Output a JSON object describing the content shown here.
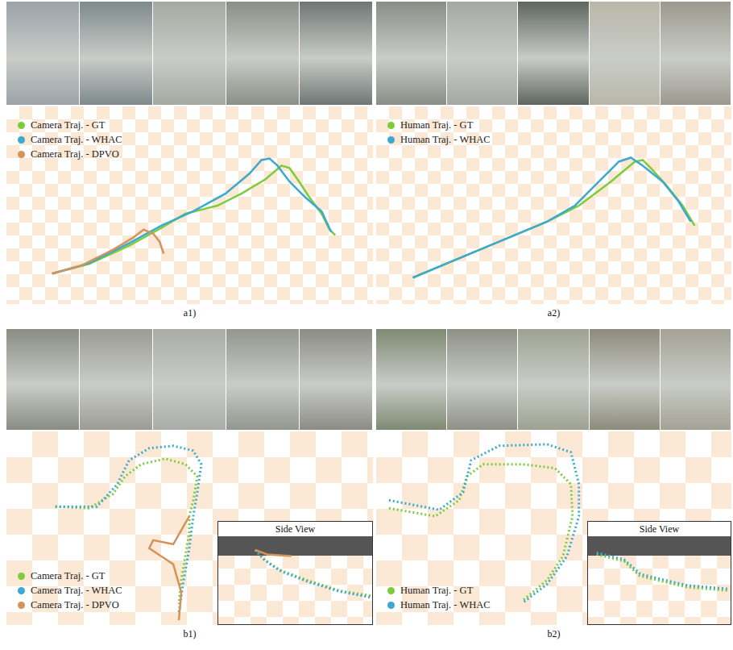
{
  "chart_data": [
    {
      "type": "line",
      "title": "a1)",
      "xlim": [
        0,
        455
      ],
      "ylim": [
        0,
        245
      ],
      "tick_labels": false,
      "legend": "upper left",
      "series": [
        {
          "name": "Camera Traj. - GT",
          "color": "#7dcc3a",
          "line_style": "solid",
          "x": [
            56,
            102,
            152,
            192,
            222,
            262,
            292,
            322,
            342,
            352,
            364,
            377,
            392,
            402,
            409
          ],
          "values": [
            37,
            49,
            72,
            94,
            112,
            122,
            137,
            155,
            172,
            169,
            152,
            132,
            112,
            92,
            85
          ]
        },
        {
          "name": "Camera Traj. - WHAC",
          "color": "#3ba9d0",
          "line_style": "solid",
          "x": [
            56,
            102,
            152,
            192,
            232,
            272,
            302,
            317,
            327,
            337,
            352,
            372,
            392,
            404
          ],
          "values": [
            37,
            50,
            75,
            97,
            115,
            137,
            162,
            179,
            181,
            172,
            152,
            132,
            115,
            89
          ]
        },
        {
          "name": "Camera Traj. - DPVO",
          "color": "#d4935a",
          "line_style": "solid",
          "x": [
            56,
            92,
            132,
            157,
            170,
            182,
            190,
            195
          ],
          "values": [
            37,
            47,
            67,
            82,
            92,
            87,
            77,
            62
          ]
        }
      ]
    },
    {
      "type": "line",
      "title": "a2)",
      "xlim": [
        0,
        443
      ],
      "ylim": [
        0,
        245
      ],
      "tick_labels": false,
      "legend": "upper left",
      "series": [
        {
          "name": "Human Traj. - GT",
          "color": "#7dcc3a",
          "line_style": "solid",
          "x": [
            45,
            93,
            153,
            213,
            253,
            293,
            323,
            333,
            345,
            363,
            383,
            398
          ],
          "values": [
            32,
            52,
            77,
            102,
            122,
            152,
            177,
            179,
            167,
            147,
            122,
            97
          ]
        },
        {
          "name": "Human Traj. - WHAC",
          "color": "#3ba9d0",
          "line_style": "solid",
          "x": [
            45,
            93,
            153,
            213,
            248,
            278,
            303,
            318,
            333,
            358,
            378,
            393
          ],
          "values": [
            32,
            52,
            77,
            102,
            122,
            152,
            177,
            182,
            172,
            152,
            127,
            102
          ]
        }
      ]
    },
    {
      "type": "line",
      "title": "b1)",
      "xlim": [
        0,
        455
      ],
      "ylim": [
        0,
        240
      ],
      "tick_labels": false,
      "legend": "lower left",
      "series": [
        {
          "name": "Camera Traj. - GT",
          "color": "#7dcc3a",
          "line_style": "dotted",
          "x": [
            60,
            102,
            132,
            147,
            167,
            197,
            222,
            237,
            232,
            227,
            227,
            222,
            217,
            214
          ],
          "values": [
            147,
            145,
            163,
            185,
            200,
            207,
            200,
            185,
            155,
            135,
            115,
            85,
            55,
            25
          ]
        },
        {
          "name": "Camera Traj. - WHAC",
          "color": "#3ba9d0",
          "line_style": "dotted",
          "x": [
            60,
            112,
            137,
            152,
            177,
            207,
            232,
            242,
            237,
            232,
            227,
            220,
            214
          ],
          "values": [
            147,
            147,
            175,
            205,
            220,
            223,
            217,
            200,
            165,
            135,
            95,
            55,
            15
          ]
        },
        {
          "name": "Camera Traj. - DPVO",
          "color": "#d4935a",
          "line_style": "solid",
          "x": [
            214,
            217,
            207,
            192,
            177,
            182,
            207,
            227
          ],
          "values": [
            5,
            40,
            75,
            85,
            95,
            105,
            100,
            135
          ]
        }
      ],
      "inset": {
        "type": "line",
        "title": "Side View",
        "xlim": [
          0,
          190
        ],
        "ylim": [
          0,
          100
        ],
        "tick_labels": false,
        "series": [
          {
            "color": "#7dcc3a",
            "line_style": "dotted",
            "x": [
              45,
              55,
              75,
              110,
              150,
              190
            ],
            "values": [
              85,
              75,
              62,
              50,
              38,
              32
            ]
          },
          {
            "color": "#3ba9d0",
            "line_style": "dotted",
            "x": [
              45,
              57,
              78,
              112,
              150,
              190
            ],
            "values": [
              85,
              73,
              60,
              48,
              37,
              30
            ]
          },
          {
            "color": "#d4935a",
            "line_style": "solid",
            "x": [
              45,
              60,
              90
            ],
            "values": [
              85,
              80,
              78
            ]
          }
        ]
      }
    },
    {
      "type": "line",
      "title": "b2)",
      "xlim": [
        0,
        443
      ],
      "ylim": [
        0,
        240
      ],
      "tick_labels": false,
      "legend": "lower left",
      "series": [
        {
          "name": "Human Traj. - GT",
          "color": "#7dcc3a",
          "line_style": "dotted",
          "x": [
            15,
            73,
            103,
            113,
            133,
            183,
            223,
            243,
            245,
            233,
            213,
            183
          ],
          "values": [
            145,
            135,
            155,
            185,
            200,
            200,
            195,
            175,
            135,
            85,
            55,
            30
          ]
        },
        {
          "name": "Human Traj. - WHAC",
          "color": "#3ba9d0",
          "line_style": "dotted",
          "x": [
            15,
            78,
            108,
            118,
            153,
            213,
            243,
            253,
            253,
            238,
            213,
            183
          ],
          "values": [
            155,
            143,
            165,
            205,
            223,
            225,
            215,
            175,
            135,
            85,
            50,
            27
          ]
        }
      ],
      "inset": {
        "type": "line",
        "title": "Side View",
        "xlim": [
          0,
          180
        ],
        "ylim": [
          0,
          100
        ],
        "tick_labels": false,
        "series": [
          {
            "color": "#7dcc3a",
            "line_style": "dotted",
            "x": [
              10,
              45,
              65,
              125,
              178
            ],
            "values": [
              80,
              72,
              55,
              42,
              38
            ]
          },
          {
            "color": "#3ba9d0",
            "line_style": "dotted",
            "x": [
              10,
              45,
              66,
              126,
              178
            ],
            "values": [
              82,
              74,
              57,
              44,
              40
            ]
          }
        ]
      }
    }
  ]
}
